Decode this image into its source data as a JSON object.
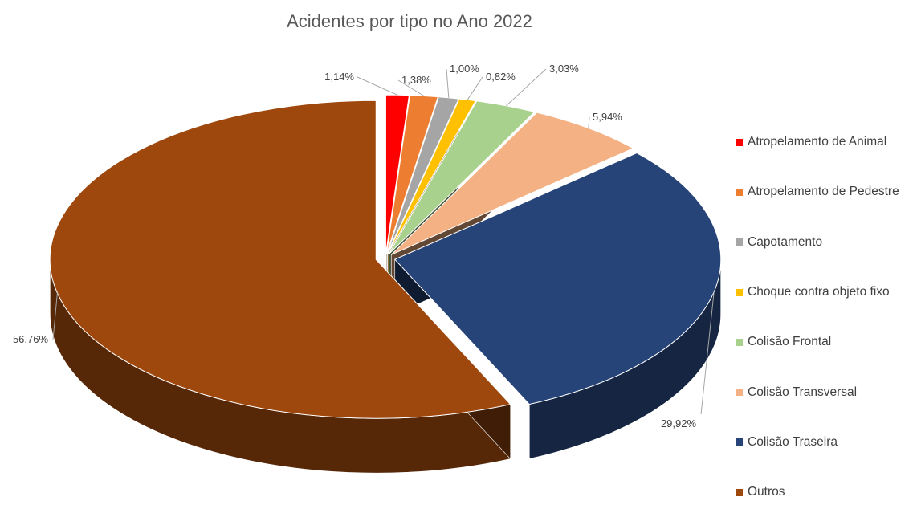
{
  "chart_data": {
    "type": "pie",
    "title": "Acidentes por tipo no Ano 2022",
    "legend_position": "right",
    "slices": [
      {
        "name": "Atropelamento de Animal",
        "value": 1.14,
        "label": "1,14%",
        "color": "#FF0000"
      },
      {
        "name": "Atropelamento de Pedestre",
        "value": 1.38,
        "label": "1,38%",
        "color": "#ED7D31"
      },
      {
        "name": "Capotamento",
        "value": 1.0,
        "label": "1,00%",
        "color": "#A5A5A5"
      },
      {
        "name": "Choque contra objeto fixo",
        "value": 0.82,
        "label": "0,82%",
        "color": "#FFC000"
      },
      {
        "name": "Colisão Frontal",
        "value": 3.03,
        "label": "3,03%",
        "color": "#A9D18E"
      },
      {
        "name": "Colisão Transversal",
        "value": 5.94,
        "label": "5,94%",
        "color": "#F4B183"
      },
      {
        "name": "Colisão Traseira",
        "value": 29.92,
        "label": "29,92%",
        "color": "#264478"
      },
      {
        "name": "Outros",
        "value": 56.76,
        "label": "56,76%",
        "color": "#9E480E"
      }
    ]
  }
}
